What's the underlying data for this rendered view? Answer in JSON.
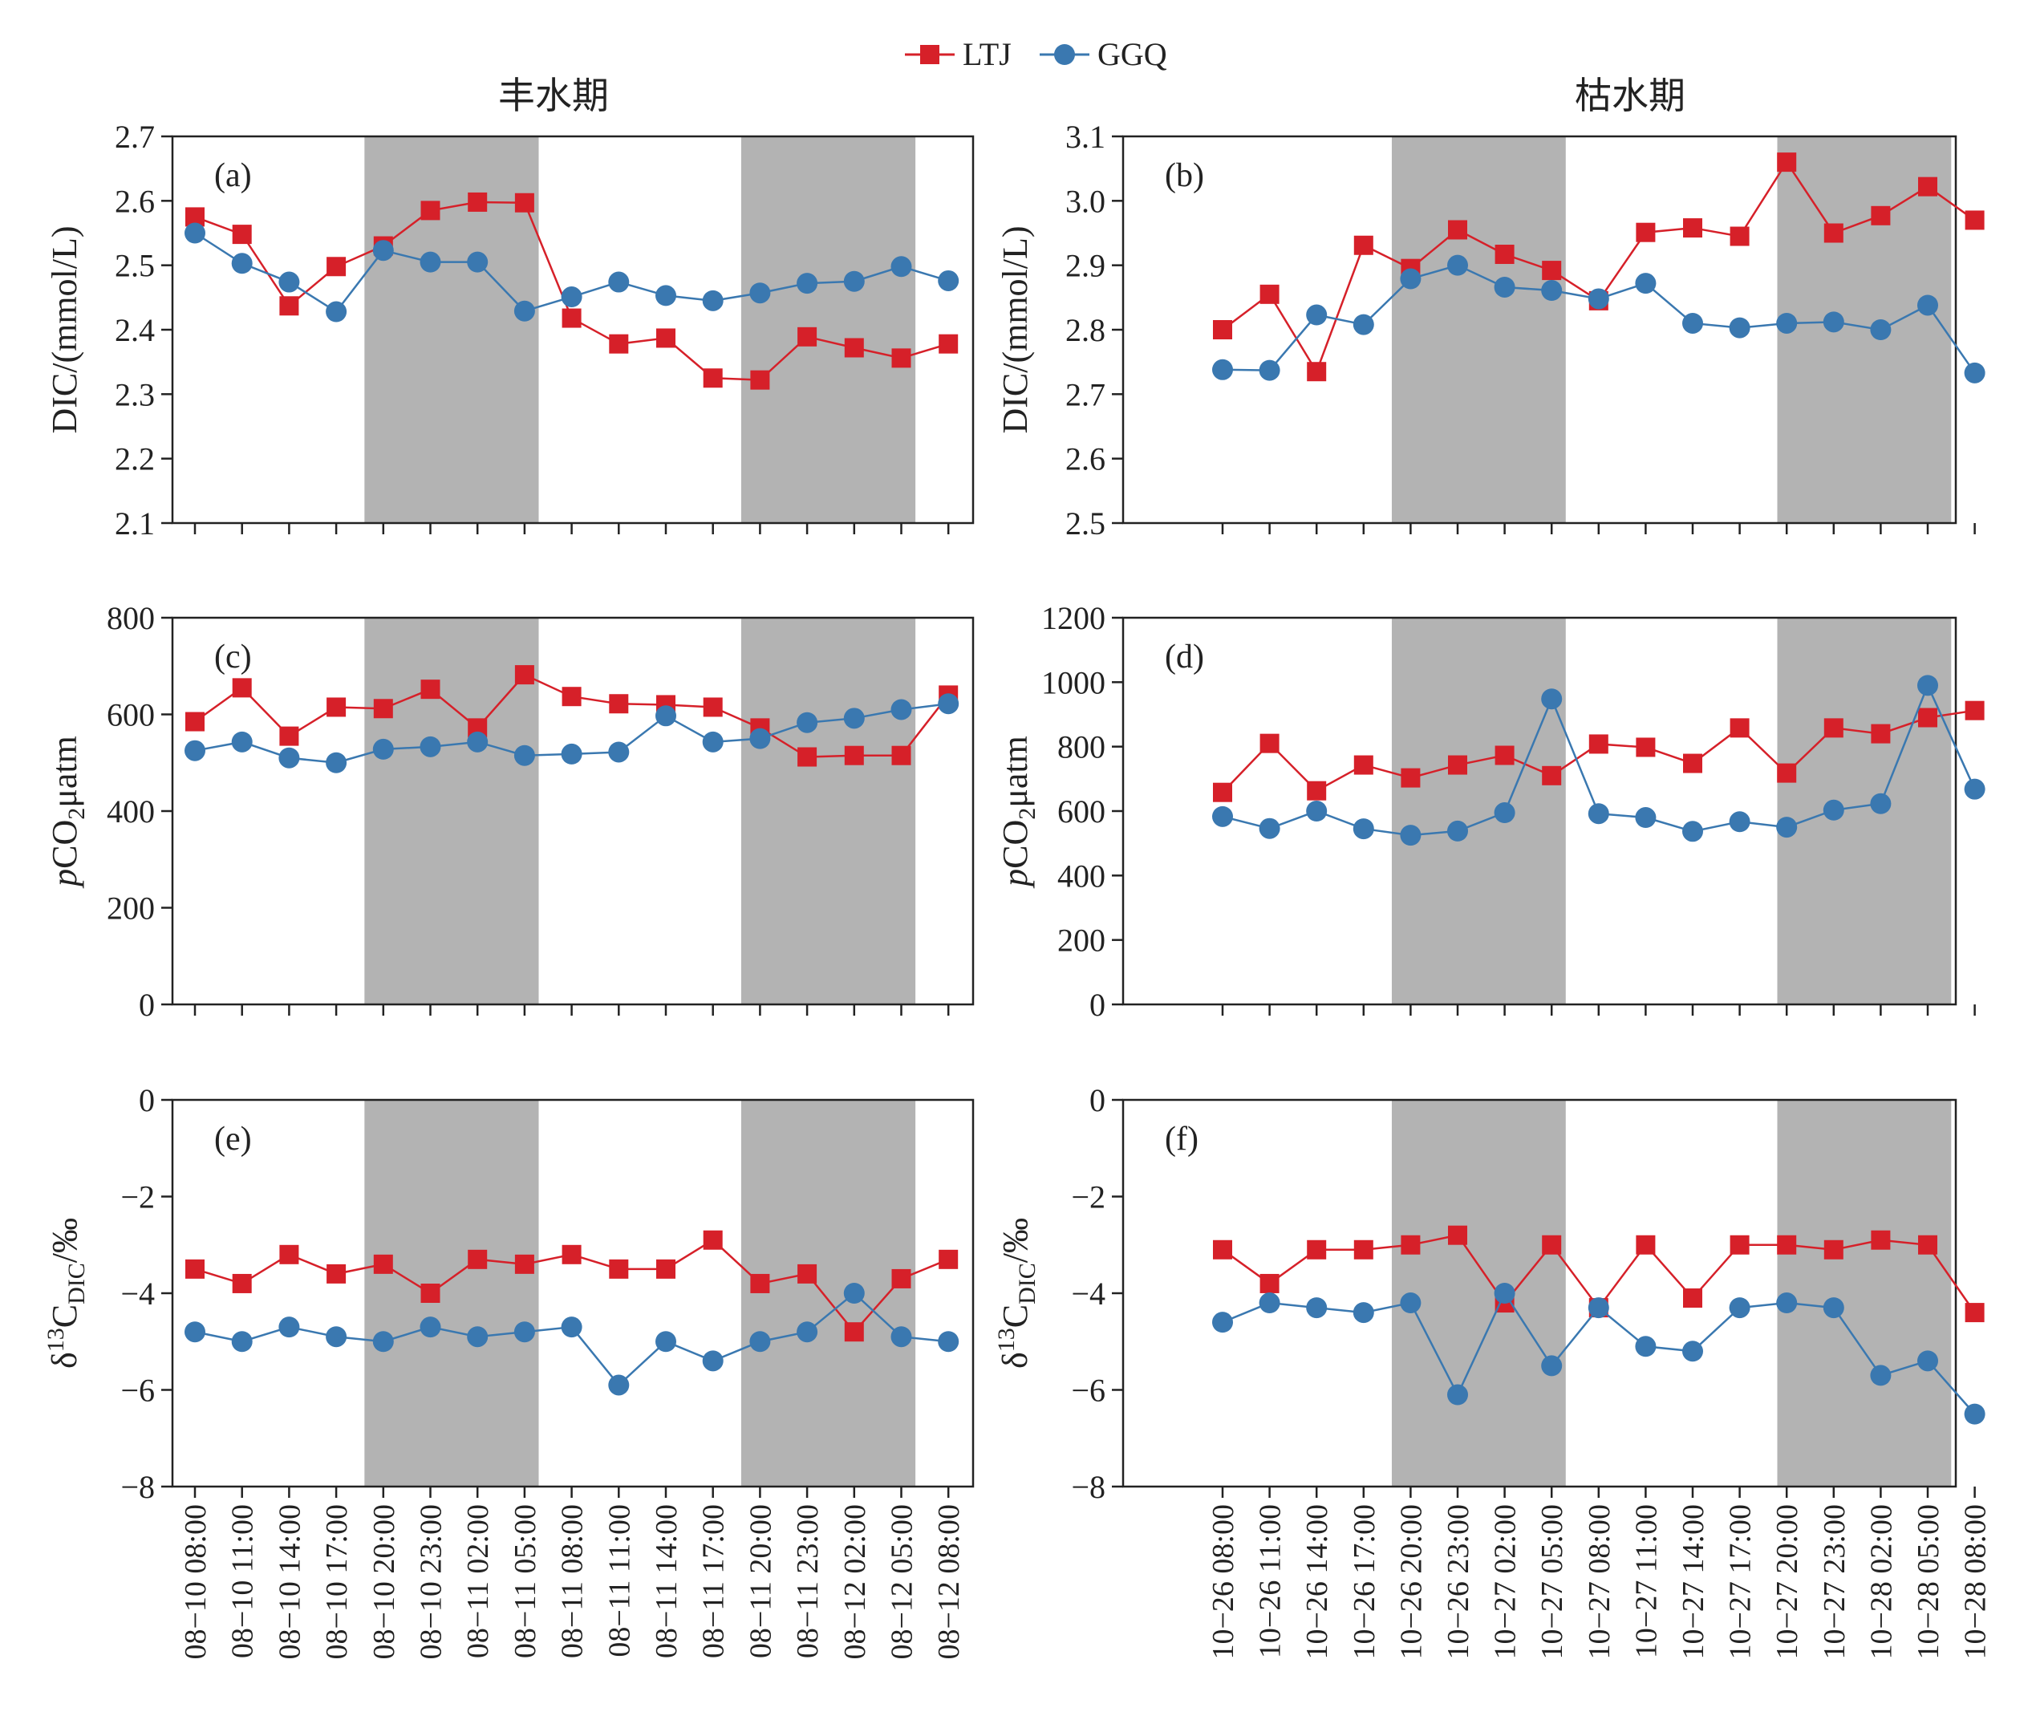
{
  "legend": {
    "items": [
      {
        "name": "LTJ",
        "color": "#d62029",
        "marker": "square"
      },
      {
        "name": "GGQ",
        "color": "#3a78b0",
        "marker": "circle"
      }
    ]
  },
  "column_titles": [
    "丰水期",
    "枯水期"
  ],
  "chart_data": [
    {
      "type": "line",
      "panel": "(a)",
      "column": 0,
      "row": 0,
      "ylabel": "DIC/(mmol/L)",
      "ylim": [
        2.1,
        2.7
      ],
      "yticks": [
        2.1,
        2.2,
        2.3,
        2.4,
        2.5,
        2.6,
        2.7
      ],
      "ytick_labels": [
        "2.1",
        "2.2",
        "2.3",
        "2.4",
        "2.5",
        "2.6",
        "2.7"
      ],
      "shaded_ranges": [
        [
          3.6,
          7.3
        ],
        [
          11.6,
          15.3
        ]
      ],
      "series": [
        {
          "name": "LTJ",
          "values": [
            2.575,
            2.548,
            2.437,
            2.498,
            2.53,
            2.585,
            2.598,
            2.597,
            2.418,
            2.378,
            2.387,
            2.325,
            2.322,
            2.389,
            2.372,
            2.356,
            2.378
          ]
        },
        {
          "name": "GGQ",
          "values": [
            2.55,
            2.503,
            2.474,
            2.428,
            2.523,
            2.505,
            2.505,
            2.429,
            2.451,
            2.474,
            2.453,
            2.445,
            2.457,
            2.472,
            2.475,
            2.498,
            2.476
          ]
        }
      ]
    },
    {
      "type": "line",
      "panel": "(b)",
      "column": 1,
      "row": 0,
      "ylabel": "DIC/(mmol/L)",
      "ylim": [
        2.5,
        3.1
      ],
      "yticks": [
        2.5,
        2.6,
        2.7,
        2.8,
        2.9,
        3.0,
        3.1
      ],
      "ytick_labels": [
        "2.5",
        "2.6",
        "2.7",
        "2.8",
        "2.9",
        "3.0",
        "3.1"
      ],
      "shaded_ranges": [
        [
          3.6,
          7.3
        ],
        [
          11.8,
          15.5
        ]
      ],
      "series": [
        {
          "name": "LTJ",
          "values": [
            2.8,
            2.855,
            2.735,
            2.931,
            2.895,
            2.955,
            2.917,
            2.892,
            2.845,
            2.951,
            2.958,
            2.945,
            3.06,
            2.95,
            2.977,
            3.022,
            2.97
          ]
        },
        {
          "name": "GGQ",
          "values": [
            2.738,
            2.737,
            2.823,
            2.808,
            2.879,
            2.9,
            2.866,
            2.861,
            2.848,
            2.872,
            2.81,
            2.803,
            2.81,
            2.812,
            2.8,
            2.838,
            2.733
          ]
        }
      ]
    },
    {
      "type": "line",
      "panel": "(c)",
      "column": 0,
      "row": 1,
      "ylabel": "pCO2/μatm",
      "ylim": [
        0,
        800
      ],
      "yticks": [
        0,
        200,
        400,
        600,
        800
      ],
      "ytick_labels": [
        "0",
        "200",
        "400",
        "600",
        "800"
      ],
      "shaded_ranges": [
        [
          3.6,
          7.3
        ],
        [
          11.6,
          15.3
        ]
      ],
      "series": [
        {
          "name": "LTJ",
          "values": [
            585,
            655,
            555,
            615,
            612,
            652,
            572,
            682,
            637,
            622,
            620,
            615,
            572,
            512,
            515,
            515,
            640
          ]
        },
        {
          "name": "GGQ",
          "values": [
            525,
            543,
            510,
            500,
            528,
            533,
            543,
            515,
            518,
            522,
            597,
            543,
            550,
            583,
            592,
            610,
            622
          ]
        }
      ]
    },
    {
      "type": "line",
      "panel": "(d)",
      "column": 1,
      "row": 1,
      "ylabel": "pCO2/μatm",
      "ylim": [
        0,
        1200
      ],
      "yticks": [
        0,
        200,
        400,
        600,
        800,
        1000,
        1200
      ],
      "ytick_labels": [
        "0",
        "200",
        "400",
        "600",
        "800",
        "1000",
        "1200"
      ],
      "shaded_ranges": [
        [
          3.6,
          7.3
        ],
        [
          11.8,
          15.5
        ]
      ],
      "series": [
        {
          "name": "LTJ",
          "values": [
            658,
            810,
            663,
            743,
            703,
            743,
            773,
            710,
            808,
            798,
            748,
            858,
            718,
            858,
            840,
            890,
            912
          ]
        },
        {
          "name": "GGQ",
          "values": [
            583,
            546,
            600,
            545,
            525,
            538,
            595,
            948,
            592,
            580,
            537,
            567,
            550,
            603,
            623,
            990,
            668
          ]
        }
      ]
    },
    {
      "type": "line",
      "panel": "(e)",
      "column": 0,
      "row": 2,
      "ylabel": "δ13CDIC/‰",
      "ylim": [
        -8,
        0
      ],
      "yticks": [
        -8,
        -6,
        -4,
        -2,
        0
      ],
      "ytick_labels": [
        "−8",
        "−6",
        "−4",
        "−2",
        "0"
      ],
      "xlabels": [
        "08−10 08:00",
        "08−10 11:00",
        "08−10 14:00",
        "08−10 17:00",
        "08−10 20:00",
        "08−10 23:00",
        "08−11 02:00",
        "08−11 05:00",
        "08−11 08:00",
        "08−11 11:00",
        "08−11 14:00",
        "08−11 17:00",
        "08−11 20:00",
        "08−11 23:00",
        "08−12 02:00",
        "08−12 05:00",
        "08−12 08:00"
      ],
      "shaded_ranges": [
        [
          3.6,
          7.3
        ],
        [
          11.6,
          15.3
        ]
      ],
      "series": [
        {
          "name": "LTJ",
          "values": [
            -3.5,
            -3.8,
            -3.2,
            -3.6,
            -3.4,
            -4.0,
            -3.3,
            -3.4,
            -3.2,
            -3.5,
            -3.5,
            -2.9,
            -3.8,
            -3.6,
            -4.8,
            -3.7,
            -3.3
          ]
        },
        {
          "name": "GGQ",
          "values": [
            -4.8,
            -5.0,
            -4.7,
            -4.9,
            -5.0,
            -4.7,
            -4.9,
            -4.8,
            -4.7,
            -5.9,
            -5.0,
            -5.4,
            -5.0,
            -4.8,
            -4.0,
            -4.9,
            -5.0
          ]
        }
      ]
    },
    {
      "type": "line",
      "panel": "(f)",
      "column": 1,
      "row": 2,
      "ylabel": "δ13CDIC/‰",
      "ylim": [
        -8,
        0
      ],
      "yticks": [
        -8,
        -6,
        -4,
        -2,
        0
      ],
      "ytick_labels": [
        "−8",
        "−6",
        "−4",
        "−2",
        "0"
      ],
      "xlabels": [
        "10−26 08:00",
        "10−26 11:00",
        "10−26 14:00",
        "10−26 17:00",
        "10−26 20:00",
        "10−26 23:00",
        "10−27 02:00",
        "10−27 05:00",
        "10−27 08:00",
        "10−27 11:00",
        "10−27 14:00",
        "10−27 17:00",
        "10−27 20:00",
        "10−27 23:00",
        "10−28 02:00",
        "10−28 05:00",
        "10−28 08:00"
      ],
      "shaded_ranges": [
        [
          3.6,
          7.3
        ],
        [
          11.8,
          15.5
        ]
      ],
      "series": [
        {
          "name": "LTJ",
          "values": [
            -3.1,
            -3.8,
            -3.1,
            -3.1,
            -3.0,
            -2.8,
            -4.2,
            -3.0,
            -4.3,
            -3.0,
            -4.1,
            -3.0,
            -3.0,
            -3.1,
            -2.9,
            -3.0,
            -4.4
          ]
        },
        {
          "name": "GGQ",
          "values": [
            -4.6,
            -4.2,
            -4.3,
            -4.4,
            -4.2,
            -6.1,
            -4.0,
            -5.5,
            -4.3,
            -5.1,
            -5.2,
            -4.3,
            -4.2,
            -4.3,
            -5.7,
            -5.4,
            -6.5
          ]
        }
      ]
    }
  ]
}
